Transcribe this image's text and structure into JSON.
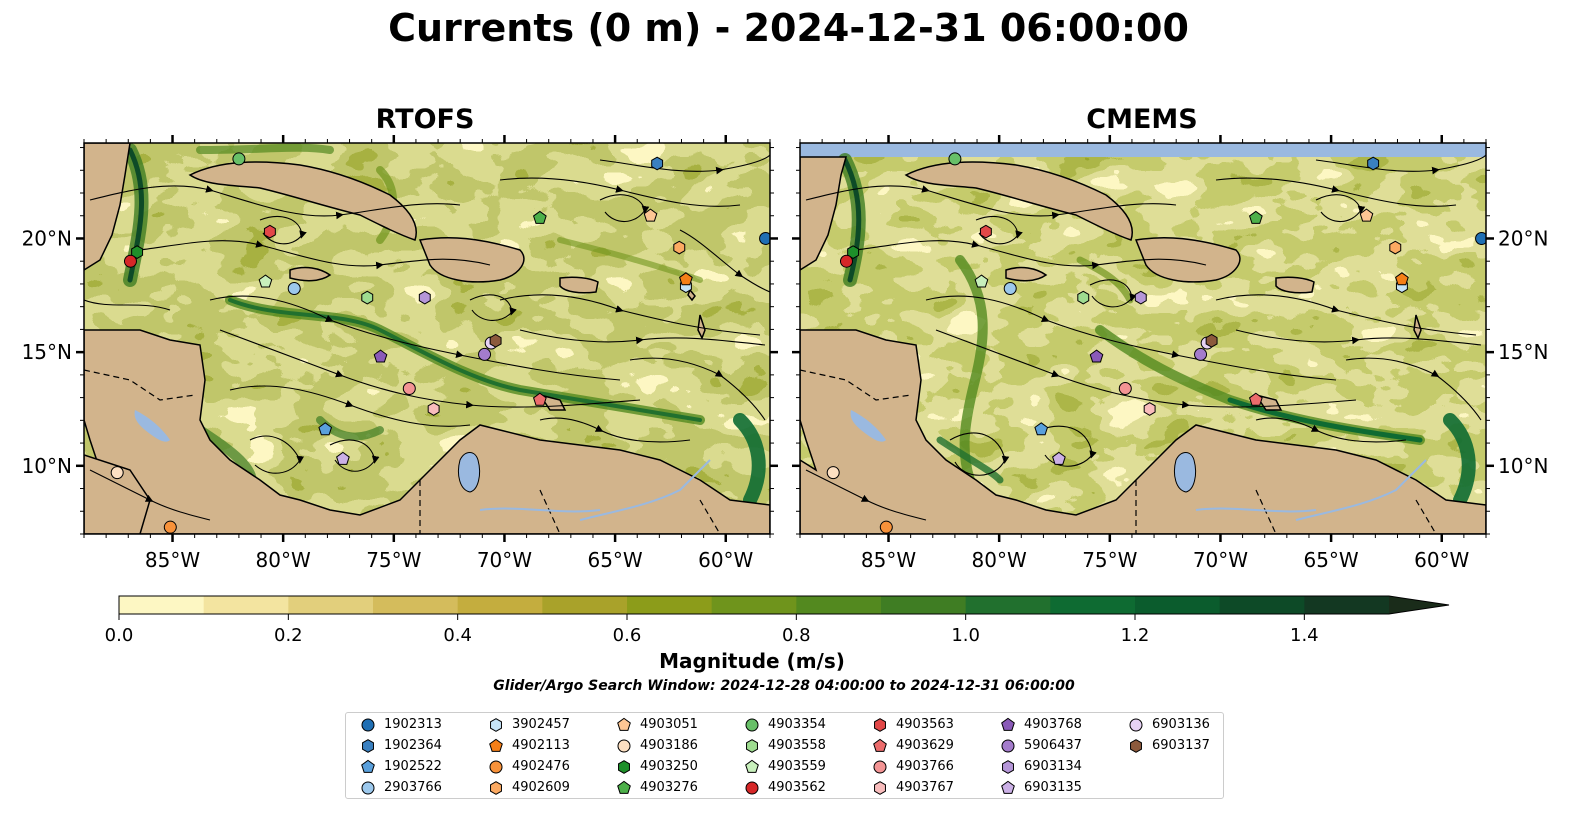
{
  "title": "Currents (0 m) - 2024-12-31 06:00:00",
  "panels": [
    {
      "title": "RTOFS"
    },
    {
      "title": "CMEMS"
    }
  ],
  "map": {
    "lon_range": [
      -89,
      -58
    ],
    "lat_range": [
      7,
      24.2
    ],
    "lon_ticks": [
      -85,
      -80,
      -75,
      -70,
      -65,
      -60
    ],
    "lon_tick_labels": [
      "85°W",
      "80°W",
      "75°W",
      "70°W",
      "65°W",
      "60°W"
    ],
    "lat_ticks": [
      10,
      15,
      20
    ],
    "lat_tick_labels": [
      "10°N",
      "15°N",
      "20°N"
    ],
    "colors": {
      "land": "#d2b48c",
      "water": "#9ab9e0",
      "ocean_low": "#fdf7c3",
      "ocean_high": "#0e6b32"
    }
  },
  "colorbar": {
    "label": "Magnitude (m/s)",
    "range": [
      0,
      1.5
    ],
    "ticks": [
      0.0,
      0.2,
      0.4,
      0.6,
      0.8,
      1.0,
      1.2,
      1.4
    ],
    "tick_labels": [
      "0.0",
      "0.2",
      "0.4",
      "0.6",
      "0.8",
      "1.0",
      "1.2",
      "1.4"
    ],
    "extend": "max",
    "colors": [
      "#fdf7c3",
      "#f3e4a0",
      "#e2cf7c",
      "#d4bc5c",
      "#c4ad3e",
      "#a9a22a",
      "#8c9c1a",
      "#6f941c",
      "#53891f",
      "#3f7d23",
      "#21702e",
      "#0e6b32",
      "#0b5c2d",
      "#0d4a27",
      "#133822",
      "#1a2c1a"
    ]
  },
  "search_window": "Glider/Argo Search Window: 2024-12-28 04:00:00 to 2024-12-31 06:00:00",
  "legend": [
    {
      "id": "1902313",
      "marker": "circle",
      "color": "#1f6fb4"
    },
    {
      "id": "1902364",
      "marker": "hexagon",
      "color": "#3a80c0"
    },
    {
      "id": "1902522",
      "marker": "pentagon",
      "color": "#5aa0dc"
    },
    {
      "id": "2903766",
      "marker": "circle",
      "color": "#9cc8ec"
    },
    {
      "id": "3902457",
      "marker": "hexagon",
      "color": "#c6e4f8"
    },
    {
      "id": "4902113",
      "marker": "pentagon",
      "color": "#f57f17"
    },
    {
      "id": "4902476",
      "marker": "circle",
      "color": "#f8923a"
    },
    {
      "id": "4902609",
      "marker": "hexagon",
      "color": "#fcaa62"
    },
    {
      "id": "4903051",
      "marker": "pentagon",
      "color": "#fdc694"
    },
    {
      "id": "4903186",
      "marker": "circle",
      "color": "#fde0c2"
    },
    {
      "id": "4903250",
      "marker": "hexagon",
      "color": "#1e8f2a"
    },
    {
      "id": "4903276",
      "marker": "pentagon",
      "color": "#4db04a"
    },
    {
      "id": "4903354",
      "marker": "circle",
      "color": "#68c068"
    },
    {
      "id": "4903558",
      "marker": "hexagon",
      "color": "#9edc90"
    },
    {
      "id": "4903559",
      "marker": "pentagon",
      "color": "#c8f0bc"
    },
    {
      "id": "4903562",
      "marker": "circle",
      "color": "#d62728"
    },
    {
      "id": "4903563",
      "marker": "hexagon",
      "color": "#e24848"
    },
    {
      "id": "4903629",
      "marker": "pentagon",
      "color": "#ec6c6c"
    },
    {
      "id": "4903766",
      "marker": "circle",
      "color": "#f39494"
    },
    {
      "id": "4903767",
      "marker": "hexagon",
      "color": "#f8bcbc"
    },
    {
      "id": "4903768",
      "marker": "pentagon",
      "color": "#8a5ab8"
    },
    {
      "id": "5906437",
      "marker": "circle",
      "color": "#a47ccc"
    },
    {
      "id": "6903134",
      "marker": "hexagon",
      "color": "#b596d8"
    },
    {
      "id": "6903135",
      "marker": "pentagon",
      "color": "#cbb0e6"
    },
    {
      "id": "6903136",
      "marker": "circle",
      "color": "#e6d2f4"
    },
    {
      "id": "6903137",
      "marker": "hexagon",
      "color": "#8c5a3c"
    }
  ],
  "platforms_rtofs": [
    {
      "id": "1902313",
      "lon": -58.2,
      "lat": 20.0
    },
    {
      "id": "1902364",
      "lon": -63.1,
      "lat": 23.3
    },
    {
      "id": "1902522",
      "lon": -78.1,
      "lat": 11.6
    },
    {
      "id": "2903766",
      "lon": -79.5,
      "lat": 17.8
    },
    {
      "id": "3902457",
      "lon": -61.8,
      "lat": 17.9
    },
    {
      "id": "4902113",
      "lon": -61.8,
      "lat": 18.2
    },
    {
      "id": "4902476",
      "lon": -85.1,
      "lat": 7.3
    },
    {
      "id": "4902609",
      "lon": -62.1,
      "lat": 19.6
    },
    {
      "id": "4903051",
      "lon": -63.4,
      "lat": 21.0
    },
    {
      "id": "4903186",
      "lon": -87.5,
      "lat": 9.7
    },
    {
      "id": "4903250",
      "lon": -86.6,
      "lat": 19.4
    },
    {
      "id": "4903276",
      "lon": -68.4,
      "lat": 20.9
    },
    {
      "id": "4903354",
      "lon": -82.0,
      "lat": 23.5
    },
    {
      "id": "4903558",
      "lon": -76.2,
      "lat": 17.4
    },
    {
      "id": "4903559",
      "lon": -80.8,
      "lat": 18.1
    },
    {
      "id": "4903562",
      "lon": -86.9,
      "lat": 19.0
    },
    {
      "id": "4903563",
      "lon": -80.6,
      "lat": 20.3
    },
    {
      "id": "4903629",
      "lon": -68.4,
      "lat": 12.9
    },
    {
      "id": "4903766",
      "lon": -74.3,
      "lat": 13.4
    },
    {
      "id": "4903767",
      "lon": -73.2,
      "lat": 12.5
    },
    {
      "id": "4903768",
      "lon": -75.6,
      "lat": 14.8
    },
    {
      "id": "5906437",
      "lon": -70.9,
      "lat": 14.9
    },
    {
      "id": "6903134",
      "lon": -73.6,
      "lat": 17.4
    },
    {
      "id": "6903135",
      "lon": -77.3,
      "lat": 10.3
    },
    {
      "id": "6903136",
      "lon": -70.6,
      "lat": 15.4
    },
    {
      "id": "6903137",
      "lon": -70.4,
      "lat": 15.5
    }
  ],
  "platforms_cmems": [
    {
      "id": "1902313",
      "lon": -58.2,
      "lat": 20.0
    },
    {
      "id": "1902364",
      "lon": -63.1,
      "lat": 23.3
    },
    {
      "id": "1902522",
      "lon": -78.1,
      "lat": 11.6
    },
    {
      "id": "2903766",
      "lon": -79.5,
      "lat": 17.8
    },
    {
      "id": "3902457",
      "lon": -61.8,
      "lat": 17.9
    },
    {
      "id": "4902113",
      "lon": -61.8,
      "lat": 18.2
    },
    {
      "id": "4902476",
      "lon": -85.1,
      "lat": 7.3
    },
    {
      "id": "4902609",
      "lon": -62.1,
      "lat": 19.6
    },
    {
      "id": "4903051",
      "lon": -63.4,
      "lat": 21.0
    },
    {
      "id": "4903186",
      "lon": -87.5,
      "lat": 9.7
    },
    {
      "id": "4903250",
      "lon": -86.6,
      "lat": 19.4
    },
    {
      "id": "4903276",
      "lon": -68.4,
      "lat": 20.9
    },
    {
      "id": "4903354",
      "lon": -82.0,
      "lat": 23.5
    },
    {
      "id": "4903558",
      "lon": -76.2,
      "lat": 17.4
    },
    {
      "id": "4903559",
      "lon": -80.8,
      "lat": 18.1
    },
    {
      "id": "4903562",
      "lon": -86.9,
      "lat": 19.0
    },
    {
      "id": "4903563",
      "lon": -80.6,
      "lat": 20.3
    },
    {
      "id": "4903629",
      "lon": -68.4,
      "lat": 12.9
    },
    {
      "id": "4903766",
      "lon": -74.3,
      "lat": 13.4
    },
    {
      "id": "4903767",
      "lon": -73.2,
      "lat": 12.5
    },
    {
      "id": "4903768",
      "lon": -75.6,
      "lat": 14.8
    },
    {
      "id": "5906437",
      "lon": -70.9,
      "lat": 14.9
    },
    {
      "id": "6903134",
      "lon": -73.6,
      "lat": 17.4
    },
    {
      "id": "6903135",
      "lon": -77.3,
      "lat": 10.3
    },
    {
      "id": "6903136",
      "lon": -70.6,
      "lat": 15.4
    },
    {
      "id": "6903137",
      "lon": -70.4,
      "lat": 15.5
    }
  ]
}
